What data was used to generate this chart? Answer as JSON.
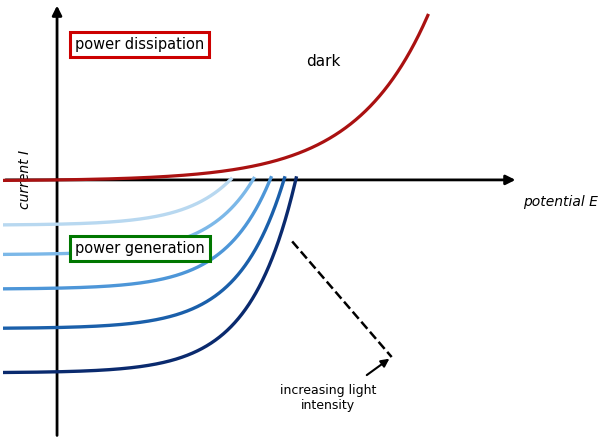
{
  "background_color": "#ffffff",
  "dark_curve_color": "#aa1111",
  "light_curve_colors": [
    "#b8d8f0",
    "#7cb8e8",
    "#4d96d8",
    "#1a5faa",
    "#0a2a6e"
  ],
  "axis_label_I": "current I",
  "axis_label_E": "potential E",
  "label_dark": "dark",
  "label_power_dissipation": "power dissipation",
  "label_power_generation": "power generation",
  "label_increasing": "increasing light\nintensity",
  "box_color_dissipation": "#cc0000",
  "box_color_generation": "#007700",
  "Isc_values": [
    0.18,
    0.3,
    0.44,
    0.6,
    0.78
  ],
  "Vt_solar": 0.1,
  "I0_solar": 0.004,
  "Vt_dark": 0.16,
  "I0_dark": 0.004,
  "xlim": [
    -0.12,
    1.02
  ],
  "ylim": [
    -1.05,
    0.72
  ]
}
